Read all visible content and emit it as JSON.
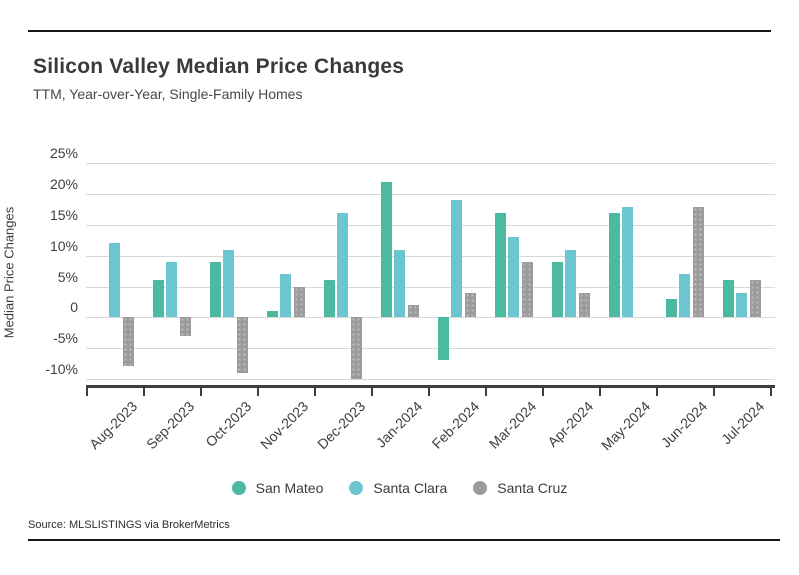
{
  "header": {
    "title": "Silicon Valley Median Price Changes",
    "subtitle": "TTM, Year-over-Year, Single-Family Homes"
  },
  "chart_data": {
    "type": "bar",
    "title": "Silicon Valley Median Price Changes",
    "subtitle": "TTM, Year-over-Year, Single-Family Homes",
    "xlabel": "",
    "ylabel": "Median Price Changes",
    "categories": [
      "Aug-2023",
      "Sep-2023",
      "Oct-2023",
      "Nov-2023",
      "Dec-2023",
      "Jan-2024",
      "Feb-2024",
      "Mar-2024",
      "Apr-2024",
      "May-2024",
      "Jun-2024",
      "Jul-2024"
    ],
    "series": [
      {
        "name": "San Mateo",
        "color": "#4bbaa0",
        "values": [
          0,
          6,
          9,
          1,
          6,
          22,
          -7,
          17,
          9,
          17,
          3,
          6
        ]
      },
      {
        "name": "Santa Clara",
        "color": "#6cc6d2",
        "values": [
          12,
          9,
          11,
          7,
          17,
          11,
          19,
          13,
          11,
          18,
          7,
          4
        ]
      },
      {
        "name": "Santa Cruz",
        "color": "#9b9b9b",
        "values": [
          -8,
          -3,
          -9,
          5,
          -10,
          2,
          4,
          9,
          4,
          0,
          18,
          6
        ]
      }
    ],
    "y_ticks": [
      {
        "label": "25%",
        "value": 25
      },
      {
        "label": "20%",
        "value": 20
      },
      {
        "label": "15%",
        "value": 15
      },
      {
        "label": "10%",
        "value": 10
      },
      {
        "label": "5%",
        "value": 5
      },
      {
        "label": "0",
        "value": 0
      },
      {
        "label": "-5%",
        "value": -5
      },
      {
        "label": "-10%",
        "value": -10
      }
    ],
    "ylim": [
      -11,
      27.5
    ],
    "grid": true,
    "legend_position": "bottom",
    "bar_unit": "percent"
  },
  "colors": {
    "grid": "#d8d8d8",
    "axis": "#3d3d3d",
    "rule": "#161616",
    "san_mateo": "#4bbaa0",
    "santa_clara": "#6cc6d2",
    "santa_cruz": "#9b9b9b"
  },
  "footer": {
    "source": "Source:  MLSLISTINGS via BrokerMetrics"
  }
}
